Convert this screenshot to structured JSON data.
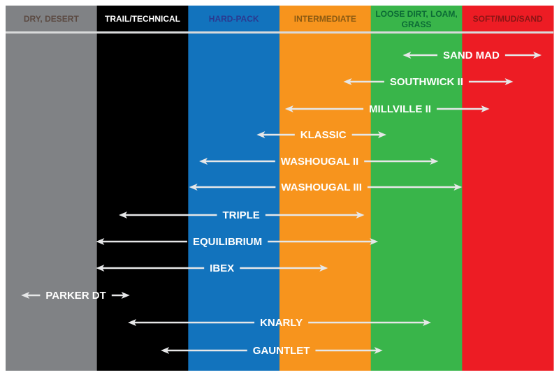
{
  "terrains": [
    {
      "label": "DRY, DESERT",
      "color": "#808285",
      "text_color": "#5b4a42"
    },
    {
      "label": "TRAIL/TECHNICAL",
      "color": "#000000",
      "text_color": "#ffffff"
    },
    {
      "label": "HARD-PACK",
      "color": "#1273bd",
      "text_color": "#2b3990"
    },
    {
      "label": "INTERMEDIATE",
      "color": "#f7941d",
      "text_color": "#8b5a12"
    },
    {
      "label": "LOOSE DIRT, LOAM, GRASS",
      "color": "#39b54a",
      "text_color": "#0b6a35"
    },
    {
      "label": "SOFT/MUD/SAND",
      "color": "#ed1c24",
      "text_color": "#8b1515"
    }
  ],
  "tires": [
    {
      "name": "SAND MAD",
      "from": 4.35,
      "to": 5.87,
      "label_at": 5.1
    },
    {
      "name": "SOUTHWICK II",
      "from": 3.7,
      "to": 5.56,
      "label_at": 4.61
    },
    {
      "name": "MILLVILLE II",
      "from": 3.06,
      "to": 5.3,
      "label_at": 4.32
    },
    {
      "name": "KLASSIC",
      "from": 2.75,
      "to": 4.17,
      "label_at": 3.48
    },
    {
      "name": "WASHOUGAL II",
      "from": 2.12,
      "to": 4.74,
      "label_at": 3.44
    },
    {
      "name": "WASHOUGAL III",
      "from": 2.01,
      "to": 5.0,
      "label_at": 3.46
    },
    {
      "name": "TRIPLE",
      "from": 1.24,
      "to": 3.93,
      "label_at": 2.58
    },
    {
      "name": "EQUILIBRIUM",
      "from": 0.99,
      "to": 4.08,
      "label_at": 2.43
    },
    {
      "name": "IBEX",
      "from": 0.99,
      "to": 3.53,
      "label_at": 2.37
    },
    {
      "name": "PARKER DT",
      "from": 0.17,
      "to": 1.36,
      "label_at": 0.77
    },
    {
      "name": "KNARLY",
      "from": 1.34,
      "to": 4.66,
      "label_at": 3.02
    },
    {
      "name": "GAUNTLET",
      "from": 1.7,
      "to": 4.13,
      "label_at": 3.02
    }
  ],
  "arrow_color": "#e6e7e8"
}
